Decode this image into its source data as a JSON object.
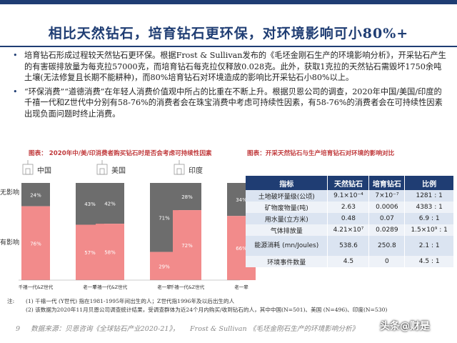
{
  "page": {
    "title": "相比天然钻石，培育钻石更环保，对环境影响可小80%+",
    "page_number": "9",
    "footer_items": [
      "数据来源：贝恩咨询《全球钻石产业2020-21》，",
      "Frost & Sullivan 《毛坯金刚石生产的环境影响分析》"
    ],
    "watermark": "头条@财是",
    "accent_color": "#1f3d73",
    "highlight_color": "#c0393b"
  },
  "bullets": [
    "培育钻石形成过程较天然钻石更环保。根据Frost & Sullivan发布的《毛坯金刚石生产的环境影响分析》，开采钻石产生的有害碳排放量为每克拉57000克，而培育钻石每克拉仅释放0.028克。此外，获取1克拉的天然钻石需毁坏1750余吨土壤(无法修复且长期不能耕种)，而80%培育钻石对环境造成的影响比开采钻石小80%以上。",
    "“环保消费”“道德消费”在年轻人消费价值观中所占的比重在不断上升。根据贝恩公司的调查，2020年中国/美国/印度的千禧一代和Z世代中分别有58-76%的消费者会在珠宝消费中考虑可持续性因素，有58-76%的消费者会在可持续性因素出现负面问题时终止消费。"
  ],
  "captions": {
    "left": "图表： 2020年中/美/印消费者购买钻石时是否会考虑可持续性因素",
    "right": "图表：开采天然钻石与生产培育钻石对环境的影响对比"
  },
  "chart_data": [
    {
      "type": "bar",
      "stacked": true,
      "y_labels": [
        "无影响",
        "有影响"
      ],
      "groups": [
        {
          "name": "中国",
          "icon": "temple-icon",
          "categories": [
            "千禧一代&Z世代",
            "老一辈"
          ],
          "有影响": [
            76,
            57
          ],
          "无影响": [
            24,
            43
          ]
        },
        {
          "name": "美国",
          "icon": "skyscraper-icon",
          "categories": [
            "千禧一代&Z世代",
            "老一辈"
          ],
          "有影响": [
            58,
            29
          ],
          "无影响": [
            42,
            71
          ]
        },
        {
          "name": "印度",
          "icon": "taj-mahal-icon",
          "categories": [
            "千禧一代&Z世代",
            "老一辈"
          ],
          "有影响": [
            72,
            66
          ],
          "无影响": [
            28,
            34
          ]
        }
      ],
      "value_suffix": "%",
      "colors": {
        "有影响": "#f28b8b",
        "无影响": "#6d6d6d"
      }
    },
    {
      "type": "table",
      "columns": [
        "指标",
        "天然钻石",
        "培育钻石",
        "比例"
      ],
      "rows": [
        [
          "土地破坏量级(公顷)",
          "9.1×10⁻⁴",
          "7×10⁻⁷",
          "1281 : 1"
        ],
        [
          "矿物废物量(吨)",
          "2.63",
          "0.0006",
          "4383 : 1"
        ],
        [
          "用水量(立方米)",
          "0.48",
          "0.07",
          "6.9 : 1"
        ],
        [
          "气体排放量",
          "4.21×10⁷",
          "0.0289",
          "1.5×10⁹ : 1"
        ],
        [
          "能源消耗 (mn/Joules)",
          "538.6",
          "250.8",
          "2.1 : 1"
        ],
        [
          "环境事件数量",
          "4.5",
          "0",
          "4.5 : 1"
        ]
      ]
    }
  ],
  "notes": [
    {
      "label": "注:",
      "text": "(1) 千禧一代 (Y世代) 指在1981-1995年间出生的人；Z世代指1996年及以后出生的人"
    },
    {
      "label": "",
      "text": "(2) 该数据为2020年11月贝恩公司调查统计结果，受调查群体为近24个月内购买/收到钻石的人，其中中国(N=501)、美国 (N=496)、印度(N=530)"
    }
  ]
}
